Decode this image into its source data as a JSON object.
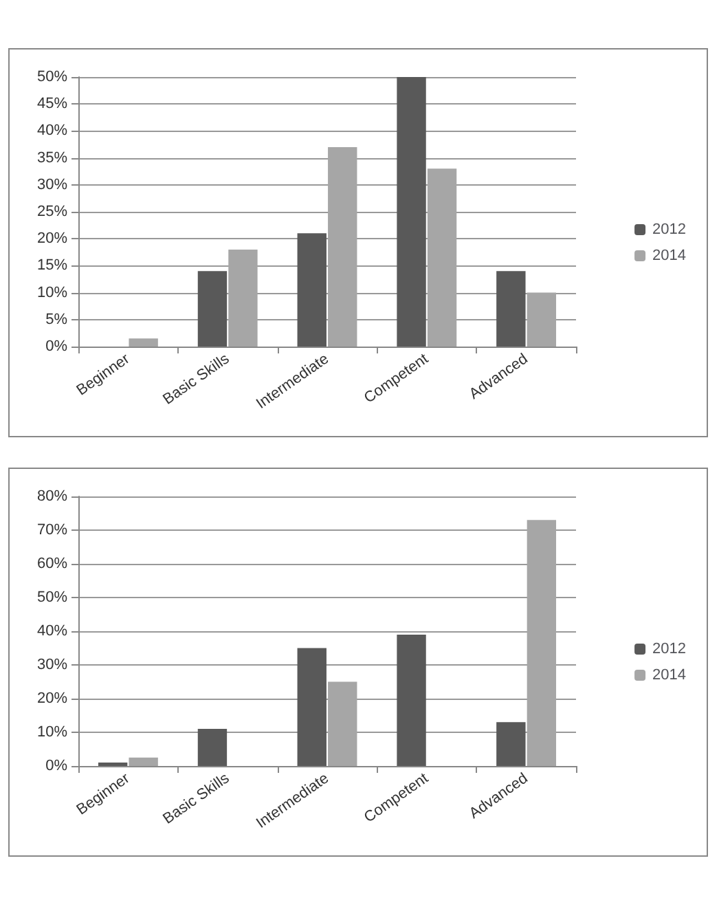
{
  "chart_data": [
    {
      "type": "bar",
      "categories": [
        "Beginner",
        "Basic Skills",
        "Intermediate",
        "Competent",
        "Advanced"
      ],
      "series": [
        {
          "name": "2012",
          "color": "#595959",
          "values": [
            0,
            14,
            21,
            50,
            14
          ]
        },
        {
          "name": "2014",
          "color": "#a6a6a6",
          "values": [
            1.5,
            18,
            37,
            33,
            10
          ]
        }
      ],
      "ylim": [
        0,
        50
      ],
      "yticks": [
        {
          "value": 0,
          "label": "0%"
        },
        {
          "value": 5,
          "label": "5%"
        },
        {
          "value": 10,
          "label": "10%"
        },
        {
          "value": 15,
          "label": "15%"
        },
        {
          "value": 20,
          "label": "20%"
        },
        {
          "value": 25,
          "label": "25%"
        },
        {
          "value": 30,
          "label": "30%"
        },
        {
          "value": 35,
          "label": "35%"
        },
        {
          "value": 40,
          "label": "40%"
        },
        {
          "value": 45,
          "label": "45%"
        },
        {
          "value": 50,
          "label": "50%"
        }
      ],
      "grid": "y",
      "legend": "right"
    },
    {
      "type": "bar",
      "categories": [
        "Beginner",
        "Basic Skills",
        "Intermediate",
        "Competent",
        "Advanced"
      ],
      "series": [
        {
          "name": "2012",
          "color": "#595959",
          "values": [
            1,
            11,
            35,
            39,
            13
          ]
        },
        {
          "name": "2014",
          "color": "#a6a6a6",
          "values": [
            2.5,
            0,
            25,
            0,
            73
          ]
        }
      ],
      "ylim": [
        0,
        80
      ],
      "yticks": [
        {
          "value": 0,
          "label": "0%"
        },
        {
          "value": 10,
          "label": "10%"
        },
        {
          "value": 20,
          "label": "20%"
        },
        {
          "value": 30,
          "label": "30%"
        },
        {
          "value": 40,
          "label": "40%"
        },
        {
          "value": 50,
          "label": "50%"
        },
        {
          "value": 60,
          "label": "60%"
        },
        {
          "value": 70,
          "label": "70%"
        },
        {
          "value": 80,
          "label": "80%"
        }
      ],
      "grid": "y",
      "legend": "right"
    }
  ]
}
